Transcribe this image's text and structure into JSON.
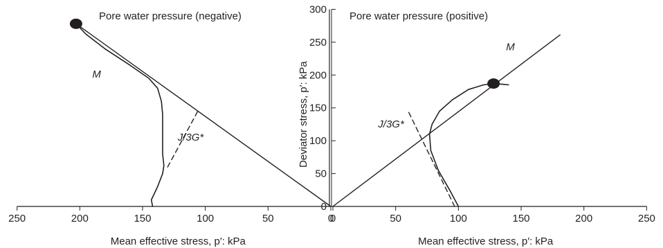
{
  "chart_data": {
    "type": "line",
    "colors": {
      "ink": "#231f20",
      "background": "#ffffff"
    },
    "x_axis": {
      "left": {
        "label": "Mean effective stress, p′: kPa",
        "ticks": [
          250,
          200,
          150,
          100,
          50,
          0
        ],
        "range": [
          250,
          0
        ]
      },
      "right": {
        "label": "Mean effective stress, p′: kPa",
        "ticks": [
          0,
          50,
          100,
          150,
          200,
          250
        ],
        "range": [
          0,
          250
        ]
      }
    },
    "y_axis": {
      "label": "Deviator stress, p′: kPa",
      "ticks": [
        0,
        50,
        100,
        150,
        200,
        250,
        300
      ],
      "range": [
        0,
        300
      ]
    },
    "panels": [
      {
        "id": "negative",
        "title": "Pore water pressure (negative)",
        "series": [
          {
            "kind": "stress-path",
            "style": "solid-wiggly",
            "points": [
              [
                142,
                0
              ],
              [
                143,
                10
              ],
              [
                138,
                30
              ],
              [
                134,
                50
              ],
              [
                133,
                62
              ],
              [
                134,
                80
              ],
              [
                134,
                110
              ],
              [
                134,
                140
              ],
              [
                135,
                160
              ],
              [
                138,
                180
              ],
              [
                145,
                195
              ],
              [
                160,
                215
              ],
              [
                180,
                240
              ],
              [
                195,
                262
              ],
              [
                203,
                278
              ]
            ]
          },
          {
            "kind": "M-line",
            "style": "solid",
            "points": [
              [
                0,
                0
              ],
              [
                203,
                278
              ]
            ]
          },
          {
            "kind": "J/3G*-line",
            "style": "dashed",
            "points": [
              [
                130,
                60
              ],
              [
                106,
                145
              ]
            ]
          }
        ],
        "markers": [
          {
            "kind": "failure-point",
            "x": 203,
            "y": 278
          }
        ],
        "annotations": [
          {
            "text": "M",
            "x": 190,
            "y": 196
          },
          {
            "text": "J/3G*",
            "x": 122,
            "y": 100
          }
        ]
      },
      {
        "id": "positive",
        "title": "Pore water pressure (positive)",
        "series": [
          {
            "kind": "stress-path",
            "style": "solid-wiggly",
            "points": [
              [
                100,
                0
              ],
              [
                93,
                25
              ],
              [
                84,
                55
              ],
              [
                78,
                85
              ],
              [
                77,
                110
              ],
              [
                79,
                125
              ],
              [
                85,
                145
              ],
              [
                95,
                162
              ],
              [
                108,
                178
              ],
              [
                120,
                185
              ],
              [
                128,
                187
              ],
              [
                135,
                186
              ],
              [
                140,
                185
              ]
            ]
          },
          {
            "kind": "M-line",
            "style": "solid",
            "points": [
              [
                0,
                0
              ],
              [
                181,
                261
              ]
            ]
          },
          {
            "kind": "J/3G*-line",
            "style": "dashed",
            "points": [
              [
                97,
                0
              ],
              [
                60,
                145
              ]
            ]
          }
        ],
        "markers": [
          {
            "kind": "failure-point",
            "x": 128,
            "y": 187
          }
        ],
        "annotations": [
          {
            "text": "M",
            "x": 138,
            "y": 238
          },
          {
            "text": "J/3G*",
            "x": 36,
            "y": 120
          }
        ]
      }
    ]
  }
}
